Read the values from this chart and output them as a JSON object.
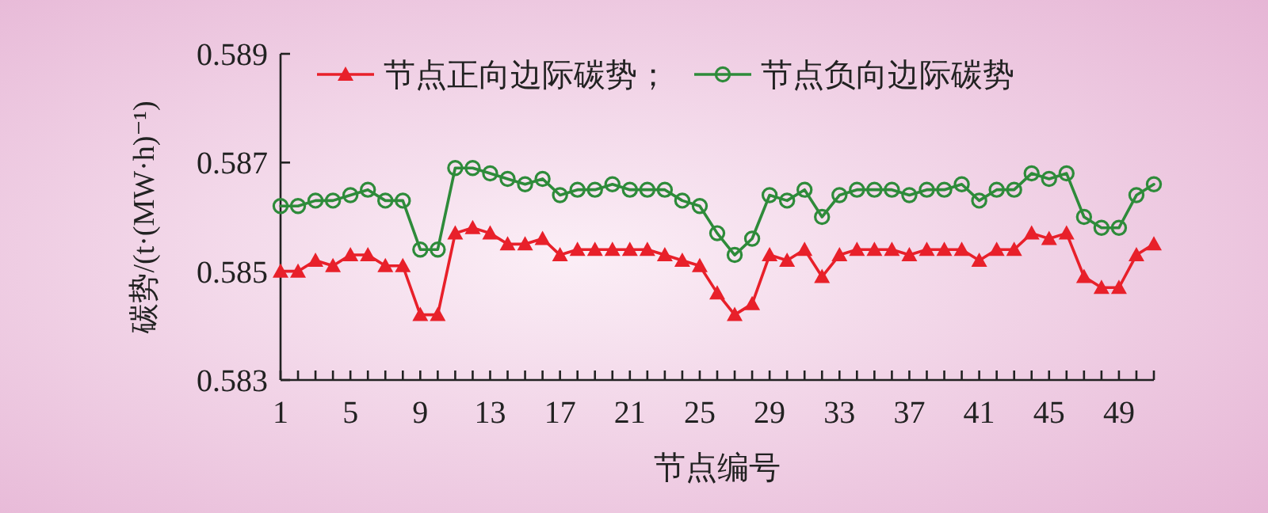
{
  "chart_data": {
    "type": "line",
    "xlabel": "节点编号",
    "ylabel": "碳势/(t·(MW·h)⁻¹)",
    "x": [
      1,
      2,
      3,
      4,
      5,
      6,
      7,
      8,
      9,
      10,
      11,
      12,
      13,
      14,
      15,
      16,
      17,
      18,
      19,
      20,
      21,
      22,
      23,
      24,
      25,
      26,
      27,
      28,
      29,
      30,
      31,
      32,
      33,
      34,
      35,
      36,
      37,
      38,
      39,
      40,
      41,
      42,
      43,
      44,
      45,
      46,
      47,
      48,
      49,
      50,
      51
    ],
    "series": [
      {
        "name": "节点正向边际碳势；",
        "color": "#e8202a",
        "marker": "triangle",
        "values": [
          0.585,
          0.585,
          0.5852,
          0.5851,
          0.5853,
          0.5853,
          0.5851,
          0.5851,
          0.5842,
          0.5842,
          0.5857,
          0.5858,
          0.5857,
          0.5855,
          0.5855,
          0.5856,
          0.5853,
          0.5854,
          0.5854,
          0.5854,
          0.5854,
          0.5854,
          0.5853,
          0.5852,
          0.5851,
          0.5846,
          0.5842,
          0.5844,
          0.5853,
          0.5852,
          0.5854,
          0.5849,
          0.5853,
          0.5854,
          0.5854,
          0.5854,
          0.5853,
          0.5854,
          0.5854,
          0.5854,
          0.5852,
          0.5854,
          0.5854,
          0.5857,
          0.5856,
          0.5857,
          0.5849,
          0.5847,
          0.5847,
          0.5853,
          0.5855
        ]
      },
      {
        "name": "节点负向边际碳势",
        "color": "#2e8b3a",
        "marker": "circle",
        "values": [
          0.5862,
          0.5862,
          0.5863,
          0.5863,
          0.5864,
          0.5865,
          0.5863,
          0.5863,
          0.5854,
          0.5854,
          0.5869,
          0.5869,
          0.5868,
          0.5867,
          0.5866,
          0.5867,
          0.5864,
          0.5865,
          0.5865,
          0.5866,
          0.5865,
          0.5865,
          0.5865,
          0.5863,
          0.5862,
          0.5857,
          0.5853,
          0.5856,
          0.5864,
          0.5863,
          0.5865,
          0.586,
          0.5864,
          0.5865,
          0.5865,
          0.5865,
          0.5864,
          0.5865,
          0.5865,
          0.5866,
          0.5863,
          0.5865,
          0.5865,
          0.5868,
          0.5867,
          0.5868,
          0.586,
          0.5858,
          0.5858,
          0.5864,
          0.5866
        ]
      }
    ],
    "xlim": [
      1,
      51
    ],
    "xticks": [
      1,
      {
        "value": 2,
        "label": null
      },
      {
        "value": 3,
        "label": null
      },
      {
        "value": 4,
        "label": null
      },
      5,
      {
        "value": 6,
        "label": null
      },
      {
        "value": 7,
        "label": null
      },
      {
        "value": 8,
        "label": null
      },
      9,
      {
        "value": 10,
        "label": null
      },
      {
        "value": 11,
        "label": null
      },
      {
        "value": 12,
        "label": null
      },
      13,
      {
        "value": 14,
        "label": null
      },
      {
        "value": 15,
        "label": null
      },
      {
        "value": 16,
        "label": null
      },
      17,
      {
        "value": 18,
        "label": null
      },
      {
        "value": 19,
        "label": null
      },
      {
        "value": 20,
        "label": null
      },
      21,
      {
        "value": 22,
        "label": null
      },
      {
        "value": 23,
        "label": null
      },
      {
        "value": 24,
        "label": null
      },
      25,
      {
        "value": 26,
        "label": null
      },
      {
        "value": 27,
        "label": null
      },
      {
        "value": 28,
        "label": null
      },
      29,
      {
        "value": 30,
        "label": null
      },
      {
        "value": 31,
        "label": null
      },
      {
        "value": 32,
        "label": null
      },
      33,
      {
        "value": 34,
        "label": null
      },
      {
        "value": 35,
        "label": null
      },
      {
        "value": 36,
        "label": null
      },
      37,
      {
        "value": 38,
        "label": null
      },
      {
        "value": 39,
        "label": null
      },
      {
        "value": 40,
        "label": null
      },
      41,
      {
        "value": 42,
        "label": null
      },
      {
        "value": 43,
        "label": null
      },
      {
        "value": 44,
        "label": null
      },
      45,
      {
        "value": 46,
        "label": null
      },
      {
        "value": 47,
        "label": null
      },
      {
        "value": 48,
        "label": null
      },
      49,
      {
        "value": 50,
        "label": null
      },
      {
        "value": 51,
        "label": null
      }
    ],
    "ylim": [
      0.583,
      0.589
    ],
    "yticks": [
      0.583,
      0.585,
      0.587,
      0.589
    ],
    "legend": "top",
    "line_style": "solid"
  }
}
